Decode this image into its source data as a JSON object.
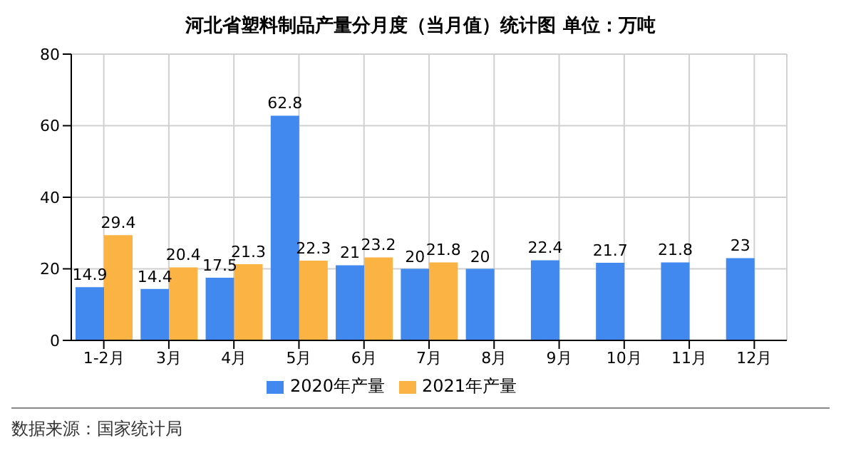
{
  "chart_data": {
    "type": "bar",
    "title": "河北省塑料制品产量分月度（当月值）统计图 单位：万吨",
    "categories": [
      "1-2月",
      "3月",
      "4月",
      "5月",
      "6月",
      "7月",
      "8月",
      "9月",
      "10月",
      "11月",
      "12月"
    ],
    "series": [
      {
        "name": "2020年产量",
        "color": "#4189ee",
        "values": [
          14.9,
          14.4,
          17.5,
          62.8,
          21,
          20,
          20,
          22.4,
          21.7,
          21.8,
          23
        ]
      },
      {
        "name": "2021年产量",
        "color": "#fbb343",
        "values": [
          29.4,
          20.4,
          21.3,
          22.3,
          23.2,
          21.8,
          null,
          null,
          null,
          null,
          null
        ]
      }
    ],
    "ylim": [
      0,
      80
    ],
    "yticks": [
      0,
      20,
      40,
      60,
      80
    ],
    "grid": true,
    "legend": "bottom",
    "data_labels": true,
    "annotations": [
      "数据来源：国家统计局"
    ]
  }
}
